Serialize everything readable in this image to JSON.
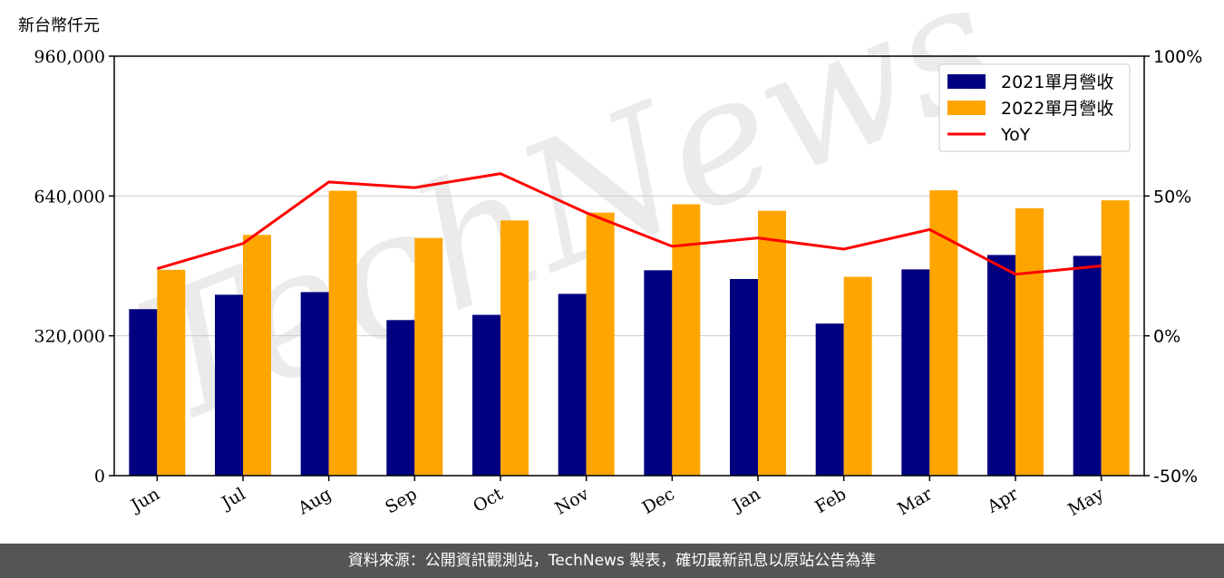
{
  "unit_label": "新台幣仟元",
  "footer_text": "資料來源：公開資訊觀測站，TechNews 製表，確切最新訊息以原站公告為準",
  "watermark": "TechNews",
  "colors": {
    "series_2021": "#000080",
    "series_2022": "#FFA500",
    "yoy": "#FF0000",
    "grid": "#CCCCCC",
    "footer_bg": "#555555"
  },
  "chart_data": {
    "type": "bar",
    "categories": [
      "Jun",
      "Jul",
      "Aug",
      "Sep",
      "Oct",
      "Nov",
      "Dec",
      "Jan",
      "Feb",
      "Mar",
      "Apr",
      "May"
    ],
    "series": [
      {
        "name": "2021單月營收",
        "type": "bar",
        "axis": "left",
        "values": [
          381000,
          414000,
          420000,
          356000,
          368000,
          416000,
          470000,
          450000,
          348000,
          472000,
          505000,
          503000
        ]
      },
      {
        "name": "2022單月營收",
        "type": "bar",
        "axis": "left",
        "values": [
          471000,
          551000,
          652000,
          544000,
          584000,
          602000,
          621000,
          606000,
          455000,
          653000,
          612000,
          630000
        ]
      },
      {
        "name": "YoY",
        "type": "line",
        "axis": "right",
        "values": [
          24,
          33,
          55,
          53,
          58,
          44,
          32,
          35,
          31,
          38,
          22,
          25
        ]
      }
    ],
    "y_left": {
      "min": 0,
      "max": 960000,
      "ticks": [
        "0",
        "320,000",
        "640,000",
        "960,000"
      ],
      "tick_values": [
        0,
        320000,
        640000,
        960000
      ]
    },
    "y_right": {
      "min": -50,
      "max": 100,
      "ticks": [
        "-50%",
        "0%",
        "50%",
        "100%"
      ],
      "tick_values": [
        -50,
        0,
        50,
        100
      ]
    },
    "grid": true,
    "legend_position": "top-right",
    "legend": [
      "2021單月營收",
      "2022單月營收",
      "YoY"
    ]
  }
}
